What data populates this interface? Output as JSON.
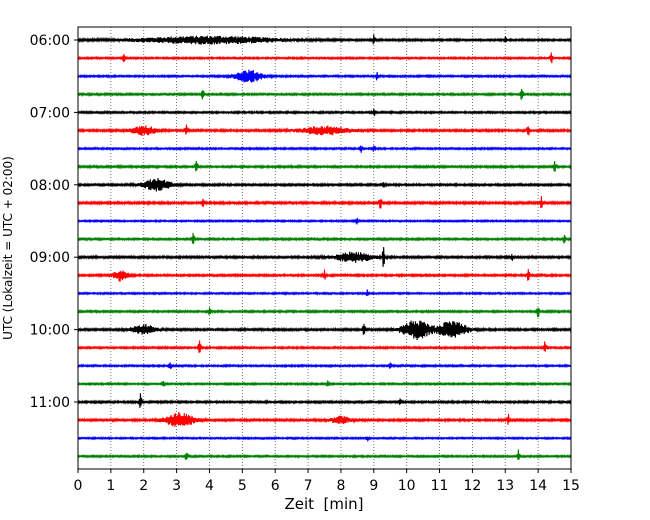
{
  "chart_data": {
    "type": "line",
    "title": "",
    "xlabel": "Zeit  [min]",
    "ylabel": "UTC (Lokalzeit = UTC + 02:00)",
    "xlim": [
      0,
      15
    ],
    "x_ticks": [
      "0",
      "1",
      "2",
      "3",
      "4",
      "5",
      "6",
      "7",
      "8",
      "9",
      "10",
      "11",
      "12",
      "13",
      "14",
      "15"
    ],
    "y_ticks": [
      {
        "label": "06:00",
        "trace_index": 0
      },
      {
        "label": "07:00",
        "trace_index": 4
      },
      {
        "label": "08:00",
        "trace_index": 8
      },
      {
        "label": "09:00",
        "trace_index": 12
      },
      {
        "label": "10:00",
        "trace_index": 16
      },
      {
        "label": "11:00",
        "trace_index": 20
      }
    ],
    "grid": "vertical dotted",
    "color_cycle": [
      "#000000",
      "#ff0000",
      "#0000ff",
      "#008000"
    ],
    "trace_interval_minutes": 15,
    "traces": [
      {
        "start": "06:00",
        "amplitude": 0.16,
        "bursts": [
          {
            "t": 4.0,
            "amp": 0.6,
            "w": 3.0
          },
          {
            "t": 9.0,
            "amp": 0.9,
            "w": 0.05
          },
          {
            "t": 13.0,
            "amp": 0.7,
            "w": 0.05
          }
        ]
      },
      {
        "start": "06:15",
        "amplitude": 0.14,
        "bursts": [
          {
            "t": 1.4,
            "amp": 0.8,
            "w": 0.05
          },
          {
            "t": 14.4,
            "amp": 1.0,
            "w": 0.05
          }
        ]
      },
      {
        "start": "06:30",
        "amplitude": 0.14,
        "bursts": [
          {
            "t": 5.2,
            "amp": 1.0,
            "w": 0.6
          },
          {
            "t": 9.1,
            "amp": 0.7,
            "w": 0.05
          }
        ]
      },
      {
        "start": "06:45",
        "amplitude": 0.15,
        "bursts": [
          {
            "t": 3.8,
            "amp": 1.0,
            "w": 0.05
          },
          {
            "t": 13.5,
            "amp": 1.0,
            "w": 0.05
          }
        ]
      },
      {
        "start": "07:00",
        "amplitude": 0.15,
        "bursts": [
          {
            "t": 9.0,
            "amp": 0.7,
            "w": 0.05
          }
        ]
      },
      {
        "start": "07:15",
        "amplitude": 0.17,
        "bursts": [
          {
            "t": 2.0,
            "amp": 0.8,
            "w": 0.5
          },
          {
            "t": 3.3,
            "amp": 0.9,
            "w": 0.05
          },
          {
            "t": 7.5,
            "amp": 0.7,
            "w": 1.0
          },
          {
            "t": 13.7,
            "amp": 1.0,
            "w": 0.05
          }
        ]
      },
      {
        "start": "07:30",
        "amplitude": 0.14,
        "bursts": [
          {
            "t": 8.6,
            "amp": 1.0,
            "w": 0.05
          },
          {
            "t": 9.0,
            "amp": 0.6,
            "w": 0.05
          }
        ]
      },
      {
        "start": "07:45",
        "amplitude": 0.16,
        "bursts": [
          {
            "t": 3.6,
            "amp": 1.0,
            "w": 0.05
          },
          {
            "t": 14.5,
            "amp": 1.2,
            "w": 0.05
          }
        ]
      },
      {
        "start": "08:00",
        "amplitude": 0.16,
        "bursts": [
          {
            "t": 2.4,
            "amp": 1.0,
            "w": 0.6
          },
          {
            "t": 9.3,
            "amp": 0.8,
            "w": 0.05
          }
        ]
      },
      {
        "start": "08:15",
        "amplitude": 0.18,
        "bursts": [
          {
            "t": 3.8,
            "amp": 0.9,
            "w": 0.05
          },
          {
            "t": 9.2,
            "amp": 1.0,
            "w": 0.05
          },
          {
            "t": 14.1,
            "amp": 1.1,
            "w": 0.05
          }
        ]
      },
      {
        "start": "08:30",
        "amplitude": 0.13,
        "bursts": [
          {
            "t": 8.5,
            "amp": 0.8,
            "w": 0.05
          }
        ]
      },
      {
        "start": "08:45",
        "amplitude": 0.15,
        "bursts": [
          {
            "t": 3.5,
            "amp": 1.0,
            "w": 0.05
          },
          {
            "t": 14.8,
            "amp": 0.8,
            "w": 0.05
          }
        ]
      },
      {
        "start": "09:00",
        "amplitude": 0.17,
        "bursts": [
          {
            "t": 8.4,
            "amp": 0.8,
            "w": 0.8
          },
          {
            "t": 9.3,
            "amp": 1.8,
            "w": 0.05
          },
          {
            "t": 13.2,
            "amp": 0.6,
            "w": 0.05
          }
        ]
      },
      {
        "start": "09:15",
        "amplitude": 0.16,
        "bursts": [
          {
            "t": 1.3,
            "amp": 0.9,
            "w": 0.3
          },
          {
            "t": 7.5,
            "amp": 1.0,
            "w": 0.05
          },
          {
            "t": 13.7,
            "amp": 1.0,
            "w": 0.05
          }
        ]
      },
      {
        "start": "09:30",
        "amplitude": 0.13,
        "bursts": [
          {
            "t": 8.8,
            "amp": 0.6,
            "w": 0.05
          }
        ]
      },
      {
        "start": "09:45",
        "amplitude": 0.15,
        "bursts": [
          {
            "t": 4.0,
            "amp": 0.8,
            "w": 0.05
          },
          {
            "t": 14.0,
            "amp": 1.1,
            "w": 0.05
          }
        ]
      },
      {
        "start": "10:00",
        "amplitude": 0.17,
        "bursts": [
          {
            "t": 2.0,
            "amp": 0.8,
            "w": 0.5
          },
          {
            "t": 8.7,
            "amp": 1.0,
            "w": 0.05
          },
          {
            "t": 10.3,
            "amp": 1.6,
            "w": 0.6
          },
          {
            "t": 11.4,
            "amp": 1.5,
            "w": 0.6
          }
        ]
      },
      {
        "start": "10:15",
        "amplitude": 0.15,
        "bursts": [
          {
            "t": 3.7,
            "amp": 1.3,
            "w": 0.05
          },
          {
            "t": 14.2,
            "amp": 1.0,
            "w": 0.05
          }
        ]
      },
      {
        "start": "10:30",
        "amplitude": 0.14,
        "bursts": [
          {
            "t": 2.8,
            "amp": 0.7,
            "w": 0.05
          },
          {
            "t": 9.5,
            "amp": 0.7,
            "w": 0.05
          }
        ]
      },
      {
        "start": "10:45",
        "amplitude": 0.14,
        "bursts": [
          {
            "t": 2.6,
            "amp": 0.7,
            "w": 0.05
          },
          {
            "t": 7.6,
            "amp": 0.7,
            "w": 0.05
          }
        ]
      },
      {
        "start": "11:00",
        "amplitude": 0.16,
        "bursts": [
          {
            "t": 1.9,
            "amp": 1.7,
            "w": 0.05
          },
          {
            "t": 9.8,
            "amp": 0.6,
            "w": 0.05
          }
        ]
      },
      {
        "start": "11:15",
        "amplitude": 0.17,
        "bursts": [
          {
            "t": 3.1,
            "amp": 1.2,
            "w": 0.6
          },
          {
            "t": 8.0,
            "amp": 0.6,
            "w": 0.4
          },
          {
            "t": 13.1,
            "amp": 0.9,
            "w": 0.05
          }
        ]
      },
      {
        "start": "11:30",
        "amplitude": 0.13,
        "bursts": [
          {
            "t": 8.8,
            "amp": 0.5,
            "w": 0.05
          }
        ]
      },
      {
        "start": "11:45",
        "amplitude": 0.14,
        "bursts": [
          {
            "t": 3.3,
            "amp": 0.9,
            "w": 0.05
          },
          {
            "t": 13.4,
            "amp": 1.0,
            "w": 0.05
          }
        ]
      }
    ]
  }
}
